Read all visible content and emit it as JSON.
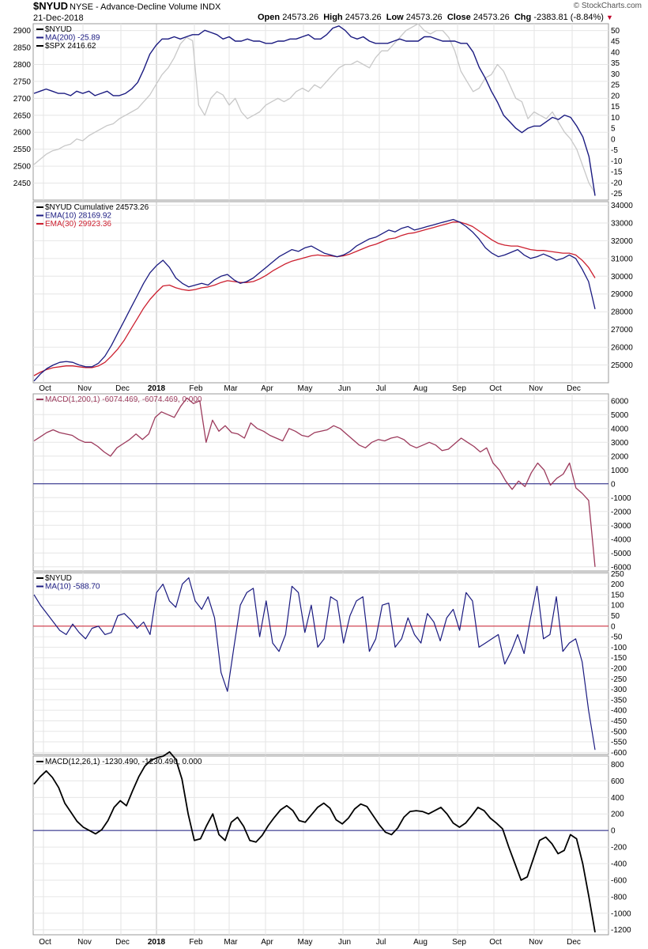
{
  "header": {
    "symbol": "$NYUD",
    "description": "NYSE - Advance-Decline Volume INDX",
    "date": "21-Dec-2018",
    "open_label": "Open",
    "open": "24573.26",
    "high_label": "High",
    "high": "24573.26",
    "low_label": "Low",
    "low": "24573.26",
    "close_label": "Close",
    "close": "24573.26",
    "chg_label": "Chg",
    "chg": "-2383.81 (-8.84%)",
    "brand": "© StockCharts.com"
  },
  "colors": {
    "navy": "#1a1a80",
    "gray": "#c8c8c8",
    "red": "#cc1f2f",
    "maroon": "#9c3a5c",
    "black": "#000000",
    "teal": "#1f8fb0"
  },
  "months": [
    "Oct",
    "Nov",
    "Dec",
    "2018",
    "Feb",
    "Mar",
    "Apr",
    "May",
    "Jun",
    "Jul",
    "Aug",
    "Sep",
    "Oct",
    "Nov",
    "Dec"
  ],
  "chart_data": [
    {
      "type": "line",
      "legend": [
        "$NYUD",
        "MA(200) -25.89",
        "$SPX 2416.62"
      ],
      "y_left_ticks": [
        2450,
        2500,
        2550,
        2600,
        2650,
        2700,
        2750,
        2800,
        2850,
        2900
      ],
      "y_right_ticks": [
        -25,
        -20,
        -15,
        -10,
        -5,
        0,
        5,
        10,
        15,
        20,
        25,
        30,
        35,
        40,
        45,
        50
      ],
      "ylim_left": [
        2400,
        2920
      ],
      "ylim_right": [
        -28,
        53
      ],
      "series": [
        {
          "name": "MA(200)",
          "axis": "right",
          "values": [
            21,
            22,
            23,
            22,
            21,
            21,
            20,
            22,
            21,
            22,
            20,
            21,
            22,
            20,
            20,
            21,
            23,
            26,
            32,
            39,
            43,
            46,
            46,
            47,
            46,
            47,
            48,
            48,
            50,
            49,
            48,
            46,
            47,
            45,
            45,
            46,
            45,
            45,
            44,
            44,
            45,
            45,
            46,
            46,
            47,
            48,
            46,
            46,
            48,
            51,
            52,
            50,
            47,
            46,
            47,
            45,
            44,
            44,
            44,
            45,
            46,
            45,
            45,
            45,
            47,
            47,
            46,
            45,
            45,
            45,
            44,
            44,
            40,
            33,
            28,
            22,
            17,
            11,
            8,
            5,
            3,
            5,
            6,
            6,
            8,
            10,
            9,
            11,
            10,
            6,
            1,
            -8,
            -26
          ]
        },
        {
          "name": "$SPX",
          "axis": "left",
          "values": [
            2505,
            2520,
            2535,
            2545,
            2550,
            2560,
            2565,
            2580,
            2575,
            2590,
            2600,
            2610,
            2620,
            2625,
            2640,
            2650,
            2660,
            2670,
            2690,
            2710,
            2740,
            2770,
            2790,
            2820,
            2860,
            2880,
            2870,
            2680,
            2650,
            2700,
            2720,
            2710,
            2680,
            2700,
            2660,
            2640,
            2650,
            2660,
            2680,
            2690,
            2700,
            2690,
            2700,
            2720,
            2730,
            2720,
            2740,
            2730,
            2750,
            2770,
            2790,
            2800,
            2800,
            2810,
            2800,
            2790,
            2820,
            2840,
            2840,
            2860,
            2880,
            2900,
            2910,
            2920,
            2900,
            2890,
            2900,
            2900,
            2880,
            2840,
            2780,
            2750,
            2720,
            2730,
            2760,
            2770,
            2800,
            2780,
            2740,
            2700,
            2690,
            2640,
            2660,
            2650,
            2640,
            2660,
            2630,
            2600,
            2580,
            2550,
            2500,
            2450,
            2420
          ]
        }
      ]
    },
    {
      "type": "line",
      "legend": [
        "$NYUD Cumulative 24573.26",
        "EMA(10) 28169.92",
        "EMA(30) 29923.36"
      ],
      "y_right_ticks": [
        25000,
        26000,
        27000,
        28000,
        29000,
        30000,
        31000,
        32000,
        33000,
        34000
      ],
      "ylim": [
        24000,
        34200
      ],
      "series": [
        {
          "name": "EMA(10)",
          "values": [
            24100,
            24500,
            24800,
            25000,
            25150,
            25200,
            25150,
            25000,
            24900,
            24900,
            25100,
            25500,
            26100,
            26800,
            27500,
            28200,
            28900,
            29600,
            30200,
            30600,
            30900,
            30500,
            29900,
            29600,
            29400,
            29500,
            29600,
            29500,
            29800,
            30000,
            30100,
            29800,
            29600,
            29700,
            29900,
            30200,
            30500,
            30800,
            31100,
            31300,
            31500,
            31400,
            31600,
            31700,
            31500,
            31300,
            31200,
            31100,
            31200,
            31400,
            31700,
            31900,
            32100,
            32200,
            32400,
            32600,
            32500,
            32700,
            32800,
            32600,
            32700,
            32800,
            32900,
            33000,
            33100,
            33200,
            33050,
            32800,
            32500,
            32100,
            31600,
            31300,
            31100,
            31200,
            31350,
            31500,
            31200,
            31000,
            31100,
            31250,
            31100,
            30900,
            31000,
            31200,
            31000,
            30400,
            29700,
            28150
          ]
        },
        {
          "name": "EMA(30)",
          "values": [
            24400,
            24600,
            24750,
            24850,
            24900,
            24950,
            24950,
            24900,
            24850,
            24850,
            24950,
            25150,
            25500,
            25900,
            26400,
            27000,
            27600,
            28200,
            28700,
            29100,
            29450,
            29500,
            29350,
            29250,
            29200,
            29250,
            29350,
            29400,
            29500,
            29650,
            29750,
            29700,
            29650,
            29650,
            29700,
            29850,
            30050,
            30300,
            30500,
            30700,
            30850,
            30950,
            31050,
            31150,
            31200,
            31150,
            31150,
            31100,
            31150,
            31250,
            31400,
            31550,
            31700,
            31800,
            31950,
            32100,
            32150,
            32300,
            32400,
            32450,
            32550,
            32650,
            32750,
            32850,
            32950,
            33050,
            33050,
            32950,
            32800,
            32550,
            32300,
            32050,
            31850,
            31750,
            31700,
            31700,
            31600,
            31500,
            31450,
            31450,
            31400,
            31350,
            31300,
            31300,
            31200,
            30900,
            30500,
            29900
          ]
        }
      ]
    },
    {
      "type": "line",
      "legend": [
        "MACD(1,200,1) -6074.469, -6074.469, 0.000"
      ],
      "y_right_ticks": [
        -6000,
        -5000,
        -4000,
        -3000,
        -2000,
        -1000,
        0,
        1000,
        2000,
        3000,
        4000,
        5000,
        6000
      ],
      "ylim": [
        -6300,
        6500
      ],
      "series": [
        {
          "name": "MACD(1,200,1)",
          "values": [
            3100,
            3400,
            3700,
            3900,
            3700,
            3600,
            3500,
            3200,
            3000,
            3000,
            2700,
            2300,
            2000,
            2600,
            2900,
            3200,
            3600,
            3200,
            3600,
            4800,
            5200,
            5000,
            4800,
            5600,
            6200,
            5800,
            6000,
            3000,
            4600,
            3800,
            4200,
            3700,
            3600,
            3300,
            4400,
            4000,
            3800,
            3500,
            3300,
            3100,
            4000,
            3800,
            3500,
            3400,
            3700,
            3800,
            3900,
            4200,
            4000,
            3600,
            3200,
            2800,
            2600,
            3000,
            3200,
            3100,
            3300,
            3400,
            3200,
            2800,
            2600,
            2800,
            3000,
            2800,
            2400,
            2500,
            2900,
            3300,
            3000,
            2700,
            2300,
            2600,
            1500,
            1000,
            200,
            -400,
            200,
            -200,
            800,
            1500,
            1000,
            -100,
            400,
            700,
            1500,
            -300,
            -700,
            -1200,
            -6000
          ]
        }
      ]
    },
    {
      "type": "line",
      "legend": [
        "$NYUD",
        "MA(10) -588.70"
      ],
      "y_right_ticks": [
        -600,
        -550,
        -500,
        -450,
        -400,
        -350,
        -300,
        -250,
        -200,
        -150,
        -100,
        -50,
        0,
        50,
        100,
        150,
        200,
        250
      ],
      "ylim": [
        -610,
        255
      ],
      "series": [
        {
          "name": "MA(10)",
          "values": [
            150,
            100,
            60,
            20,
            -20,
            -40,
            10,
            -30,
            -60,
            -10,
            0,
            -40,
            -30,
            50,
            60,
            30,
            -10,
            20,
            -40,
            160,
            200,
            120,
            90,
            200,
            230,
            120,
            80,
            140,
            40,
            -220,
            -310,
            -100,
            100,
            160,
            180,
            -50,
            120,
            -80,
            -120,
            -40,
            190,
            160,
            -30,
            100,
            -100,
            -60,
            140,
            120,
            -80,
            50,
            120,
            140,
            -120,
            -60,
            100,
            110,
            -100,
            -60,
            40,
            -40,
            -80,
            60,
            20,
            -70,
            40,
            80,
            -20,
            160,
            120,
            -100,
            -80,
            -60,
            -40,
            -180,
            -120,
            -40,
            -130,
            40,
            190,
            -60,
            -40,
            140,
            -120,
            -80,
            -60,
            -170,
            -400,
            -588
          ]
        }
      ]
    },
    {
      "type": "line",
      "legend": [
        "MACD(12,26,1) -1230.490, -1230.490, 0.000"
      ],
      "y_right_ticks": [
        -1200,
        -1000,
        -800,
        -600,
        -400,
        -200,
        0,
        200,
        400,
        600,
        800
      ],
      "ylim": [
        -1260,
        900
      ],
      "series": [
        {
          "name": "MACD(12,26,1)",
          "values": [
            560,
            650,
            720,
            640,
            520,
            330,
            220,
            110,
            40,
            0,
            -40,
            10,
            120,
            280,
            360,
            300,
            480,
            650,
            780,
            850,
            880,
            900,
            950,
            860,
            620,
            200,
            -120,
            -100,
            60,
            200,
            -50,
            -120,
            100,
            160,
            50,
            -120,
            -140,
            -60,
            60,
            160,
            250,
            300,
            240,
            120,
            100,
            190,
            280,
            330,
            270,
            130,
            80,
            150,
            260,
            320,
            290,
            180,
            70,
            -20,
            -50,
            30,
            160,
            230,
            240,
            230,
            200,
            240,
            280,
            200,
            90,
            40,
            90,
            180,
            280,
            240,
            150,
            90,
            20,
            -200,
            -400,
            -600,
            -560,
            -340,
            -120,
            -80,
            -160,
            -280,
            -240,
            -50,
            -100,
            -400,
            -800,
            -1230
          ]
        }
      ]
    }
  ]
}
